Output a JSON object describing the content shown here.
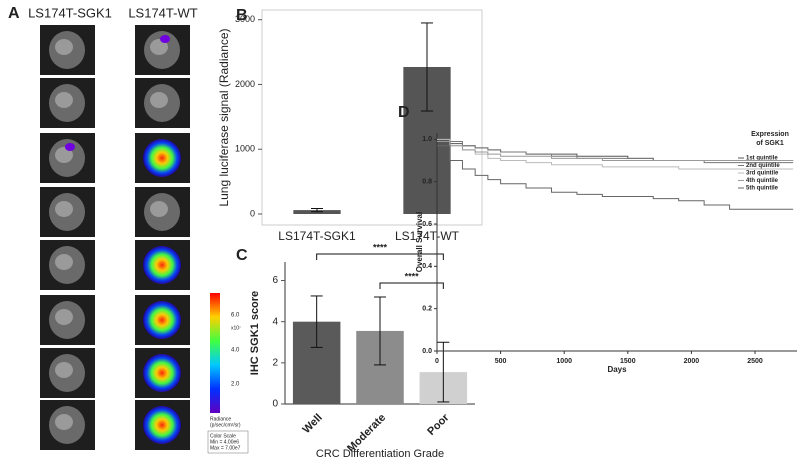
{
  "panels": {
    "A": {
      "label": "A",
      "columns": [
        "LS174T-SGK1",
        "LS174T-WT"
      ],
      "scale_ticks": [
        "6.0",
        "4.0",
        "2.0"
      ],
      "scale_exp": "x10⁷",
      "scale_unit": [
        "Radiance",
        "(p/sec/cm²/sr)"
      ],
      "scale_box": [
        "Color Scale",
        "Min = 4.00e6",
        "Max = 7.00e7"
      ]
    }
  },
  "chart_data": [
    {
      "type": "bar",
      "label": "B",
      "ylabel": "Lung luciferase signal (Radiance)",
      "categories": [
        "LS174T-SGK1",
        "LS174T-WT"
      ],
      "values": [
        60,
        2270
      ],
      "errors": [
        25,
        680
      ],
      "colors": [
        "#555555",
        "#555555"
      ],
      "ylim": [
        -170,
        3150
      ],
      "yticks": [
        0,
        1000,
        2000,
        3000
      ]
    },
    {
      "type": "bar",
      "label": "C",
      "ylabel": "IHC SGK1 score",
      "xlabel": "CRC Differentiation Grade",
      "categories": [
        "Well",
        "Moderate",
        "Poor"
      ],
      "values": [
        4.0,
        3.55,
        1.55
      ],
      "errors": [
        1.25,
        1.65,
        1.45
      ],
      "colors": [
        "#5a5a5a",
        "#8c8c8c",
        "#d0d0d0"
      ],
      "ylim": [
        0,
        6.9
      ],
      "yticks": [
        0,
        2,
        4,
        6
      ],
      "annotations": [
        "****",
        "****"
      ]
    },
    {
      "type": "line",
      "label": "D",
      "step": true,
      "xlabel": "Days",
      "ylabel": "Overall Survival",
      "legend_title": [
        "Expression",
        "of SGK1"
      ],
      "x": [
        0,
        100,
        200,
        300,
        400,
        500,
        700,
        900,
        1100,
        1300,
        1500,
        1700,
        1900,
        2100,
        2300,
        2500,
        2800
      ],
      "series": [
        {
          "name": "1st quintile",
          "color": "#555555",
          "values": [
            1.0,
            0.98,
            0.97,
            0.96,
            0.95,
            0.94,
            0.93,
            0.93,
            0.92,
            0.92,
            0.91,
            0.9,
            0.9,
            0.9,
            0.9,
            0.9,
            0.9
          ]
        },
        {
          "name": "2nd quintile",
          "color": "#777777",
          "values": [
            1.0,
            0.99,
            0.97,
            0.96,
            0.95,
            0.94,
            0.93,
            0.92,
            0.91,
            0.91,
            0.91,
            0.9,
            0.9,
            0.89,
            0.89,
            0.89,
            0.89
          ]
        },
        {
          "name": "3rd quintile",
          "color": "#bbbbbb",
          "values": [
            1.0,
            0.97,
            0.95,
            0.93,
            0.91,
            0.9,
            0.89,
            0.88,
            0.88,
            0.87,
            0.87,
            0.87,
            0.86,
            0.86,
            0.86,
            0.86,
            0.86
          ]
        },
        {
          "name": "4th quintile",
          "color": "#999999",
          "values": [
            0.99,
            0.97,
            0.95,
            0.94,
            0.93,
            0.92,
            0.92,
            0.91,
            0.91,
            0.9,
            0.9,
            0.9,
            0.9,
            0.9,
            0.9,
            0.9,
            0.9
          ]
        },
        {
          "name": "5th quintile",
          "color": "#666666",
          "values": [
            0.97,
            0.9,
            0.86,
            0.83,
            0.81,
            0.79,
            0.77,
            0.75,
            0.74,
            0.73,
            0.73,
            0.72,
            0.71,
            0.69,
            0.67,
            0.67,
            0.67
          ]
        }
      ],
      "xlim": [
        0,
        2830
      ],
      "xticks": [
        0,
        500,
        1000,
        1500,
        2000,
        2500
      ],
      "ylim": [
        0,
        1.03
      ],
      "yticks": [
        {
          "value": 0,
          "label": "0.0"
        },
        {
          "value": 0.2,
          "label": "0.2"
        },
        {
          "value": 0.4,
          "label": "0.4"
        },
        {
          "value": 0.6,
          "label": "0.6"
        },
        {
          "value": 0.8,
          "label": "0.8"
        },
        {
          "value": 1,
          "label": "1.0"
        }
      ]
    }
  ]
}
